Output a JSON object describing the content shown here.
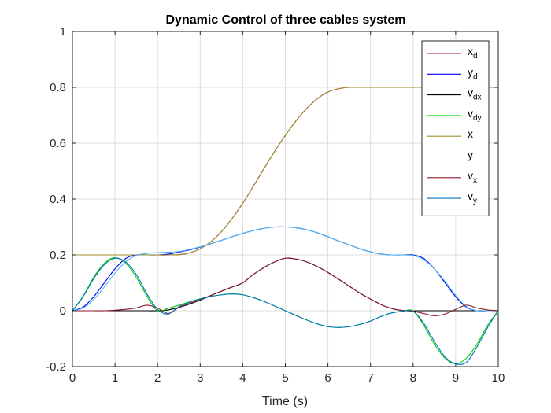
{
  "chart_data": {
    "type": "line",
    "title": "Dynamic Control of three cables system",
    "xlabel": "Time (s)",
    "ylabel": "",
    "xlim": [
      0,
      10
    ],
    "ylim": [
      -0.2,
      1
    ],
    "grid": true,
    "legend_position": "top-right",
    "x_ticks": [
      "0",
      "1",
      "2",
      "3",
      "4",
      "5",
      "6",
      "7",
      "8",
      "9",
      "10"
    ],
    "y_ticks": [
      "-0.2",
      "0",
      "0.2",
      "0.4",
      "0.6",
      "0.8",
      "1"
    ],
    "x": [
      0,
      0.25,
      0.5,
      0.75,
      1,
      1.25,
      1.5,
      1.75,
      2,
      2.25,
      2.5,
      2.75,
      3,
      3.25,
      3.5,
      3.75,
      4,
      4.25,
      4.5,
      4.75,
      5,
      5.25,
      5.5,
      5.75,
      6,
      6.25,
      6.5,
      6.75,
      7,
      7.25,
      7.5,
      7.75,
      8,
      8.25,
      8.5,
      8.75,
      9,
      9.25,
      9.5,
      9.75,
      10
    ],
    "series": [
      {
        "name": "x_d",
        "label_main": "x",
        "label_sub": "d",
        "color": "#a2142f",
        "values": [
          0.2,
          0.2,
          0.2,
          0.2,
          0.2,
          0.2,
          0.2,
          0.2,
          0.2,
          0.2,
          0.201,
          0.207,
          0.222,
          0.247,
          0.283,
          0.33,
          0.385,
          0.446,
          0.509,
          0.571,
          0.628,
          0.68,
          0.724,
          0.759,
          0.783,
          0.795,
          0.8,
          0.8,
          0.8,
          0.8,
          0.8,
          0.8,
          0.8,
          0.8,
          0.8,
          0.8,
          0.8,
          0.8,
          0.8,
          0.8,
          0.8
        ]
      },
      {
        "name": "y_d",
        "label_main": "y",
        "label_sub": "d",
        "color": "#0000ff",
        "values": [
          0,
          0.013,
          0.05,
          0.1,
          0.15,
          0.187,
          0.2,
          0.2,
          0.2,
          0.203,
          0.21,
          0.218,
          0.228,
          0.24,
          0.252,
          0.265,
          0.277,
          0.287,
          0.295,
          0.3,
          0.3,
          0.297,
          0.29,
          0.279,
          0.265,
          0.25,
          0.236,
          0.222,
          0.211,
          0.203,
          0.2,
          0.2,
          0.2,
          0.187,
          0.15,
          0.1,
          0.05,
          0.013,
          0,
          0,
          0
        ]
      },
      {
        "name": "v_dx",
        "label_main": "v",
        "label_sub": "dx",
        "color": "#000000",
        "values": [
          0,
          0,
          0,
          0,
          0,
          0,
          0,
          0,
          0,
          0.003,
          0.012,
          0.024,
          0.038,
          0.054,
          0.07,
          0.085,
          0.1,
          0.13,
          0.155,
          0.175,
          0.188,
          0.185,
          0.175,
          0.158,
          0.137,
          0.113,
          0.088,
          0.063,
          0.042,
          0.022,
          0.008,
          0.001,
          0,
          0,
          0,
          0,
          0,
          0,
          0,
          0,
          0
        ]
      },
      {
        "name": "v_dy",
        "label_main": "v",
        "label_sub": "dy",
        "color": "#00cc00",
        "values": [
          0,
          0.052,
          0.12,
          0.17,
          0.19,
          0.17,
          0.12,
          0.052,
          0,
          0.009,
          0.02,
          0.032,
          0.043,
          0.051,
          0.057,
          0.06,
          0.057,
          0.047,
          0.033,
          0.017,
          0,
          -0.017,
          -0.033,
          -0.047,
          -0.057,
          -0.06,
          -0.057,
          -0.049,
          -0.037,
          -0.02,
          -0.008,
          -0.002,
          0,
          -0.052,
          -0.12,
          -0.17,
          -0.19,
          -0.17,
          -0.12,
          -0.052,
          0
        ]
      },
      {
        "name": "x",
        "label_main": "x",
        "label_sub": "",
        "color": "#9b8b2a",
        "values": [
          0.2,
          0.2,
          0.2,
          0.2,
          0.2,
          0.2,
          0.2,
          0.2,
          0.2,
          0.2,
          0.201,
          0.207,
          0.222,
          0.247,
          0.283,
          0.33,
          0.385,
          0.446,
          0.509,
          0.571,
          0.628,
          0.68,
          0.724,
          0.759,
          0.783,
          0.795,
          0.8,
          0.8,
          0.8,
          0.8,
          0.8,
          0.8,
          0.8,
          0.8,
          0.8,
          0.8,
          0.8,
          0.8,
          0.8,
          0.8,
          0.8
        ]
      },
      {
        "name": "y",
        "label_main": "y",
        "label_sub": "",
        "color": "#4db8e8",
        "values": [
          0,
          0.01,
          0.04,
          0.085,
          0.135,
          0.175,
          0.198,
          0.205,
          0.208,
          0.21,
          0.212,
          0.22,
          0.229,
          0.24,
          0.252,
          0.265,
          0.277,
          0.287,
          0.295,
          0.3,
          0.3,
          0.297,
          0.29,
          0.279,
          0.265,
          0.25,
          0.236,
          0.222,
          0.211,
          0.203,
          0.2,
          0.2,
          0.198,
          0.183,
          0.15,
          0.105,
          0.055,
          0.015,
          0,
          0,
          0
        ]
      },
      {
        "name": "v_x",
        "label_main": "v",
        "label_sub": "x",
        "color": "#8b1a2f",
        "values": [
          0,
          0,
          0,
          0,
          0.002,
          0.005,
          0.01,
          0.02,
          0.01,
          -0.01,
          0.012,
          0.026,
          0.04,
          0.055,
          0.07,
          0.085,
          0.1,
          0.13,
          0.155,
          0.175,
          0.188,
          0.185,
          0.175,
          0.158,
          0.137,
          0.113,
          0.088,
          0.063,
          0.042,
          0.022,
          0.008,
          0.001,
          -0.002,
          -0.01,
          -0.018,
          -0.012,
          0.005,
          0.02,
          0.01,
          0.003,
          0
        ]
      },
      {
        "name": "v_y",
        "label_main": "v",
        "label_sub": "y",
        "color": "#0072bd",
        "values": [
          0,
          0.05,
          0.115,
          0.165,
          0.188,
          0.175,
          0.13,
          0.06,
          0.005,
          -0.012,
          0.015,
          0.03,
          0.042,
          0.051,
          0.057,
          0.06,
          0.057,
          0.047,
          0.033,
          0.017,
          0,
          -0.017,
          -0.033,
          -0.047,
          -0.057,
          -0.06,
          -0.057,
          -0.049,
          -0.037,
          -0.02,
          -0.008,
          -0.002,
          -0.002,
          -0.045,
          -0.11,
          -0.165,
          -0.19,
          -0.185,
          -0.13,
          -0.06,
          0
        ]
      }
    ]
  }
}
